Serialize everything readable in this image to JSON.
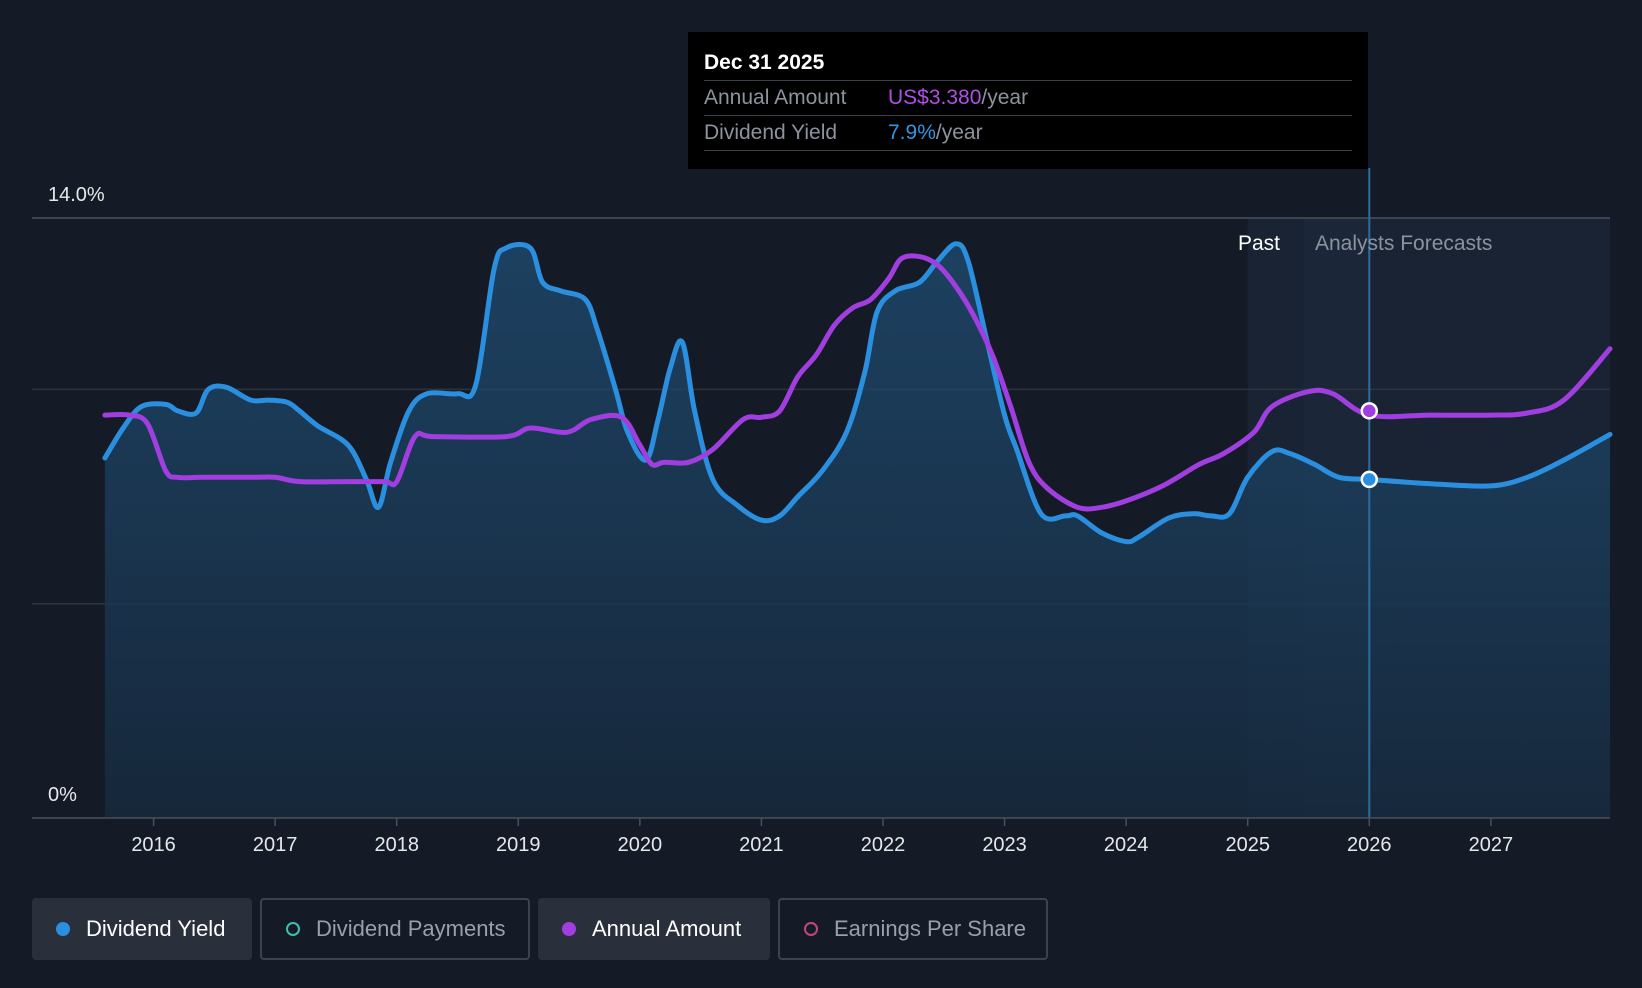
{
  "tooltip": {
    "date": "Dec 31 2025",
    "rows": [
      {
        "label": "Annual Amount",
        "value": "US$3.380",
        "unit": "/year"
      },
      {
        "label": "Dividend Yield",
        "value": "7.9%",
        "unit": "/year"
      }
    ]
  },
  "regions": {
    "past": "Past",
    "forecast": "Analysts Forecasts"
  },
  "legend": [
    {
      "label": "Dividend Yield",
      "color": "#2b8fe0",
      "filled": true,
      "active": true
    },
    {
      "label": "Dividend Payments",
      "color": "#3ebfb0",
      "filled": false,
      "active": false
    },
    {
      "label": "Annual Amount",
      "color": "#a03ee0",
      "filled": true,
      "active": true
    },
    {
      "label": "Earnings Per Share",
      "color": "#c04878",
      "filled": false,
      "active": false
    }
  ],
  "chart_data": {
    "type": "line",
    "y_axis_labels": [
      "14.0%",
      "0%"
    ],
    "ylim": [
      0,
      14
    ],
    "xlim": [
      2015.0,
      2027.98
    ],
    "x_ticks": [
      {
        "label": "2016",
        "value": 2016
      },
      {
        "label": "2017",
        "value": 2017
      },
      {
        "label": "2018",
        "value": 2018
      },
      {
        "label": "2019",
        "value": 2019
      },
      {
        "label": "2020",
        "value": 2020
      },
      {
        "label": "2021",
        "value": 2021
      },
      {
        "label": "2022",
        "value": 2022
      },
      {
        "label": "2023",
        "value": 2023
      },
      {
        "label": "2024",
        "value": 2024
      },
      {
        "label": "2025",
        "value": 2025
      },
      {
        "label": "2026",
        "value": 2026
      },
      {
        "label": "2027",
        "value": 2027
      }
    ],
    "gridlines": [
      14,
      10,
      5
    ],
    "past_boundary": 2025.0,
    "forecast_start": 2025.46,
    "cursor_x": 2026.0,
    "series": [
      {
        "name": "Dividend Yield",
        "color": "#2b8fe0",
        "area": true,
        "x": [
          2015.6,
          2015.75,
          2015.9,
          2016.1,
          2016.2,
          2016.35,
          2016.45,
          2016.6,
          2016.8,
          2016.95,
          2017.1,
          2017.2,
          2017.35,
          2017.6,
          2017.75,
          2017.85,
          2017.95,
          2018.1,
          2018.25,
          2018.5,
          2018.65,
          2018.8,
          2018.9,
          2019.1,
          2019.2,
          2019.35,
          2019.55,
          2019.65,
          2019.8,
          2019.9,
          2020.05,
          2020.15,
          2020.25,
          2020.35,
          2020.45,
          2020.6,
          2020.8,
          2021.0,
          2021.15,
          2021.3,
          2021.5,
          2021.7,
          2021.85,
          2021.95,
          2022.1,
          2022.3,
          2022.45,
          2022.6,
          2022.7,
          2022.85,
          2023.0,
          2023.1,
          2023.3,
          2023.5,
          2023.6,
          2023.8,
          2024.0,
          2024.1,
          2024.35,
          2024.55,
          2024.7,
          2024.85,
          2025.0,
          2025.2,
          2025.35,
          2025.55,
          2025.75,
          2026.0,
          2026.5,
          2027.0,
          2027.3,
          2027.6,
          2027.98
        ],
        "values": [
          8.4,
          9.1,
          9.6,
          9.65,
          9.5,
          9.45,
          10.0,
          10.05,
          9.75,
          9.75,
          9.7,
          9.5,
          9.15,
          8.7,
          7.9,
          7.25,
          8.3,
          9.5,
          9.9,
          9.9,
          10.1,
          12.8,
          13.3,
          13.3,
          12.5,
          12.3,
          12.1,
          11.4,
          10.0,
          9.0,
          8.35,
          9.3,
          10.5,
          11.1,
          9.5,
          7.9,
          7.3,
          6.95,
          7.05,
          7.5,
          8.1,
          9.0,
          10.4,
          11.8,
          12.3,
          12.5,
          13.0,
          13.4,
          13.0,
          11.2,
          9.4,
          8.6,
          7.1,
          7.05,
          7.05,
          6.65,
          6.45,
          6.55,
          7.0,
          7.1,
          7.05,
          7.1,
          7.95,
          8.55,
          8.5,
          8.25,
          7.95,
          7.9,
          7.8,
          7.75,
          7.95,
          8.35,
          8.95
        ]
      },
      {
        "name": "Annual Amount",
        "color": "#a03ee0",
        "area": false,
        "x": [
          2015.6,
          2015.8,
          2015.95,
          2016.1,
          2016.2,
          2016.4,
          2016.8,
          2017.0,
          2017.2,
          2017.6,
          2017.9,
          2018.0,
          2018.15,
          2018.3,
          2018.9,
          2019.1,
          2019.4,
          2019.6,
          2019.85,
          2020.0,
          2020.1,
          2020.2,
          2020.4,
          2020.6,
          2020.85,
          2021.0,
          2021.15,
          2021.3,
          2021.45,
          2021.6,
          2021.75,
          2021.9,
          2022.05,
          2022.15,
          2022.3,
          2022.45,
          2022.6,
          2022.75,
          2022.9,
          2023.05,
          2023.2,
          2023.35,
          2023.6,
          2023.8,
          2024.0,
          2024.3,
          2024.6,
          2024.8,
          2025.05,
          2025.2,
          2025.5,
          2025.7,
          2026.0,
          2026.5,
          2027.0,
          2027.3,
          2027.6,
          2027.98
        ],
        "values": [
          9.4,
          9.4,
          9.2,
          8.1,
          7.95,
          7.95,
          7.95,
          7.95,
          7.85,
          7.85,
          7.85,
          7.85,
          8.9,
          8.9,
          8.9,
          9.1,
          9.0,
          9.3,
          9.35,
          8.7,
          8.25,
          8.3,
          8.3,
          8.6,
          9.3,
          9.35,
          9.5,
          10.3,
          10.8,
          11.5,
          11.9,
          12.1,
          12.6,
          13.05,
          13.1,
          12.9,
          12.4,
          11.7,
          10.8,
          9.6,
          8.3,
          7.7,
          7.25,
          7.25,
          7.4,
          7.75,
          8.25,
          8.5,
          9.0,
          9.6,
          9.95,
          9.9,
          9.4,
          9.4,
          9.4,
          9.45,
          9.75,
          10.95
        ]
      }
    ],
    "markers": [
      {
        "series": "Annual Amount",
        "x": 2026.0,
        "y": 9.5
      },
      {
        "series": "Dividend Yield",
        "x": 2026.0,
        "y": 7.9
      }
    ]
  }
}
